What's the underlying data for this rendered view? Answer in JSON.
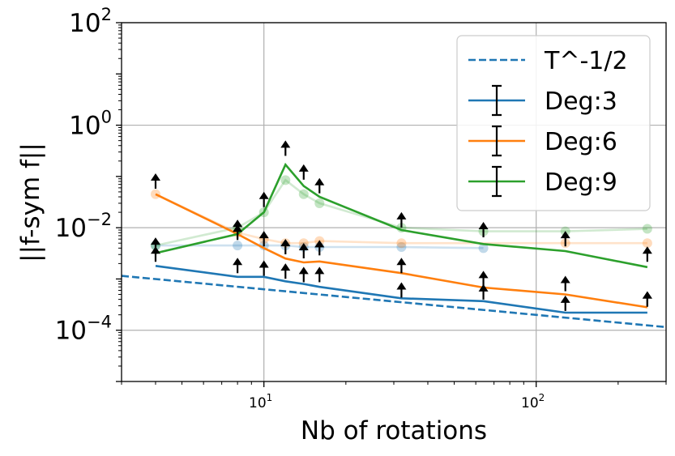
{
  "chart_data": {
    "type": "line",
    "title": "",
    "xlabel": "Nb of rotations",
    "ylabel": "||f-sym f||",
    "xscale": "log",
    "yscale": "log",
    "xlim": [
      3,
      300
    ],
    "ylim": [
      1e-05,
      100
    ],
    "grid": true,
    "legend_position": "top-right",
    "x_ticks": [
      {
        "value": 10,
        "label": "10",
        "exp": "1"
      },
      {
        "value": 100,
        "label": "10",
        "exp": "2"
      }
    ],
    "y_ticks": [
      {
        "value": 0.0001,
        "label": "10",
        "exp": "−4"
      },
      {
        "value": 0.01,
        "label": "10",
        "exp": "−2"
      },
      {
        "value": 1,
        "label": "10",
        "exp": "0"
      },
      {
        "value": 100,
        "label": "10",
        "exp": "2"
      }
    ],
    "reference": {
      "name": "T^-1/2",
      "color": "#1f77b4",
      "style": "dashed",
      "x": [
        3,
        300
      ],
      "y": [
        0.00115,
        0.000115
      ]
    },
    "series": [
      {
        "name": "Deg:3",
        "color": "#1f77b4",
        "x": [
          4,
          8,
          10,
          12,
          14,
          16,
          32,
          64,
          128,
          256
        ],
        "y": [
          0.0018,
          0.0011,
          0.0011,
          0.0009,
          0.0008,
          0.0007,
          0.00042,
          0.00037,
          0.00022,
          0.00022
        ],
        "upper_arrows_at": [
          0.003,
          0.0018,
          0.0016,
          0.0014,
          0.0012,
          0.0012,
          0.0006,
          0.00055,
          0.00033,
          0.0004
        ],
        "faded_y": [
          0.0045,
          0.0045,
          0.0045,
          0.0045,
          0.0042,
          0.0042,
          0.0042,
          0.004,
          null,
          null
        ]
      },
      {
        "name": "Deg:6",
        "color": "#ff7f0e",
        "x": [
          4,
          8,
          10,
          12,
          14,
          16,
          32,
          64,
          128,
          256
        ],
        "y": [
          0.045,
          0.0075,
          0.004,
          0.0025,
          0.0021,
          0.0022,
          0.0013,
          0.00068,
          0.0005,
          0.00028
        ],
        "upper_arrows_at": [
          0.08,
          0.008,
          0.006,
          0.0042,
          0.0035,
          0.004,
          0.0018,
          0.001,
          0.0008,
          0.0004
        ],
        "faded_y": [
          0.045,
          0.008,
          0.006,
          0.005,
          0.005,
          0.0055,
          0.005,
          null,
          0.005,
          0.005
        ]
      },
      {
        "name": "Deg:9",
        "color": "#2ca02c",
        "x": [
          4,
          8,
          10,
          12,
          14,
          16,
          32,
          64,
          128,
          256
        ],
        "y": [
          0.0032,
          0.0075,
          0.02,
          0.17,
          0.065,
          0.04,
          0.009,
          0.0048,
          0.0035,
          0.0017
        ],
        "upper_arrows_at": [
          0.0045,
          0.01,
          0.035,
          0.35,
          0.12,
          0.065,
          0.014,
          0.009,
          0.006,
          0.003
        ],
        "faded_y": [
          0.0045,
          0.01,
          0.02,
          0.085,
          0.045,
          0.03,
          0.01,
          0.0085,
          0.0085,
          0.0095
        ]
      }
    ]
  }
}
